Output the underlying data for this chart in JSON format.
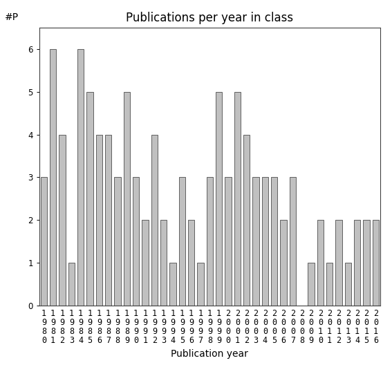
{
  "title": "Publications per year in class",
  "xlabel": "Publication year",
  "ylabel": "#P",
  "years": [
    1980,
    1981,
    1982,
    1983,
    1984,
    1985,
    1986,
    1987,
    1988,
    1989,
    1990,
    1991,
    1992,
    1993,
    1994,
    1995,
    1996,
    1997,
    1998,
    1999,
    2000,
    2001,
    2002,
    2003,
    2004,
    2005,
    2006,
    2007,
    2008,
    2009,
    2010,
    2011,
    2012,
    2013,
    2014,
    2015,
    2016
  ],
  "values": [
    3,
    6,
    4,
    1,
    6,
    5,
    4,
    4,
    3,
    5,
    3,
    2,
    4,
    2,
    1,
    3,
    2,
    1,
    3,
    5,
    3,
    5,
    4,
    3,
    3,
    3,
    2,
    3,
    0,
    1,
    2,
    1,
    2,
    1,
    2,
    2,
    2
  ],
  "bar_color": "#c0c0c0",
  "bar_edge_color": "#606060",
  "ylim": [
    0,
    6.5
  ],
  "yticks": [
    0,
    1,
    2,
    3,
    4,
    5,
    6
  ],
  "background_color": "#ffffff",
  "title_fontsize": 12,
  "label_fontsize": 10,
  "tick_fontsize": 8.5
}
